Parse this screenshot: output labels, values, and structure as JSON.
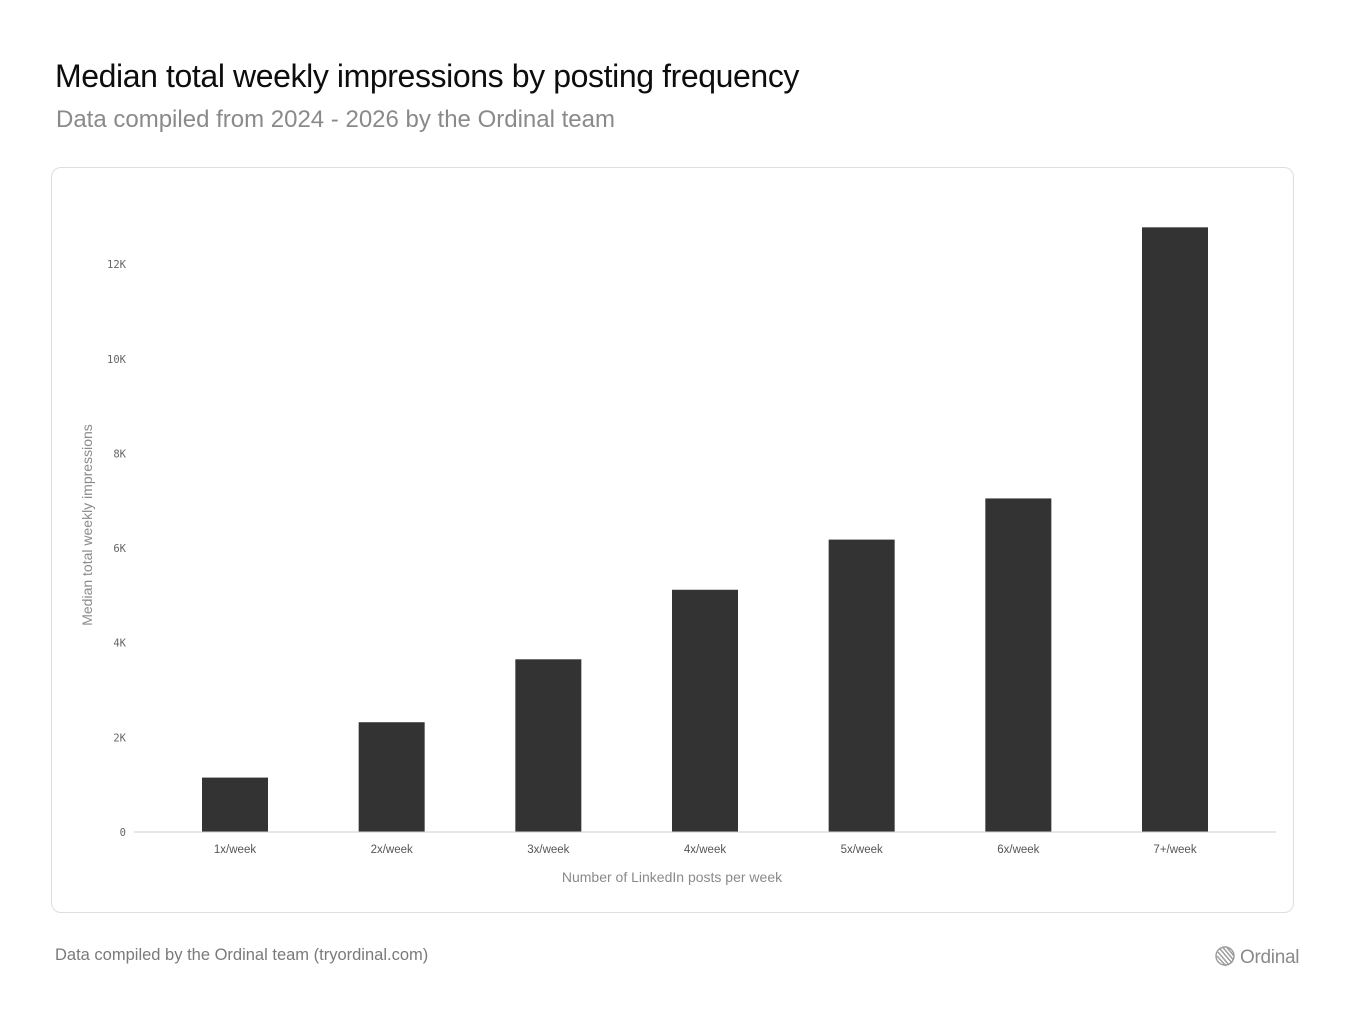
{
  "header": {
    "title": "Median total weekly impressions by posting frequency",
    "subtitle": "Data compiled from 2024 - 2026 by the Ordinal team"
  },
  "chart_data": {
    "type": "bar",
    "title": "Median total weekly impressions by posting frequency",
    "subtitle": "Data compiled from 2024 - 2026 by the Ordinal team",
    "categories": [
      "1x/week",
      "2x/week",
      "3x/week",
      "4x/week",
      "5x/week",
      "6x/week",
      "7+/week"
    ],
    "values": [
      1150,
      2320,
      3650,
      5120,
      6180,
      7050,
      12780
    ],
    "xlabel": "Number of LinkedIn posts per week",
    "ylabel": "Median total weekly impressions",
    "ylim": [
      0,
      13400
    ],
    "yticks": [
      0,
      2000,
      4000,
      6000,
      8000,
      10000,
      12000
    ],
    "ytick_labels": [
      "0",
      "2K",
      "4K",
      "6K",
      "8K",
      "10K",
      "12K"
    ],
    "bar_color": "#333333",
    "grid": false,
    "legend": "none"
  },
  "footer": {
    "credit": "Data compiled by the Ordinal team (tryordinal.com)",
    "brand_name": "Ordinal",
    "brand_icon": "ordinal-logo-icon"
  }
}
